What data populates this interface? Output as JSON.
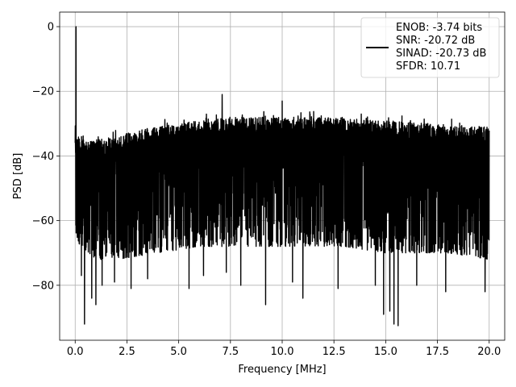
{
  "chart_data": {
    "type": "line",
    "xlabel": "Frequency [MHz]",
    "ylabel": "PSD [dB]",
    "xlim": [
      -0.75,
      20.75
    ],
    "ylim": [
      -97,
      4.5
    ],
    "xticks": [
      0.0,
      2.5,
      5.0,
      7.5,
      10.0,
      12.5,
      15.0,
      17.5,
      20.0
    ],
    "xtick_labels": [
      "0.0",
      "2.5",
      "5.0",
      "7.5",
      "10.0",
      "12.5",
      "15.0",
      "17.5",
      "20.0"
    ],
    "yticks": [
      0,
      -20,
      -40,
      -60,
      -80
    ],
    "ytick_labels": [
      "0",
      "−20",
      "−40",
      "−60",
      "−80"
    ],
    "grid": true,
    "legend_position": "top-right",
    "series": [
      {
        "color": "#000000",
        "x_range": [
          0.0,
          20.0
        ],
        "peak": {
          "x": 0.04,
          "y": 0
        },
        "upper_envelope": [
          {
            "x": 0.0,
            "y": -30
          },
          {
            "x": 0.3,
            "y": -33
          },
          {
            "x": 1.0,
            "y": -33
          },
          {
            "x": 2.0,
            "y": -32
          },
          {
            "x": 3.0,
            "y": -30
          },
          {
            "x": 4.0,
            "y": -29
          },
          {
            "x": 5.0,
            "y": -28
          },
          {
            "x": 6.0,
            "y": -27
          },
          {
            "x": 7.0,
            "y": -26.5
          },
          {
            "x": 8.0,
            "y": -26
          },
          {
            "x": 9.0,
            "y": -26
          },
          {
            "x": 10.0,
            "y": -26
          },
          {
            "x": 11.0,
            "y": -26
          },
          {
            "x": 12.0,
            "y": -26
          },
          {
            "x": 13.0,
            "y": -26.5
          },
          {
            "x": 14.0,
            "y": -27
          },
          {
            "x": 15.0,
            "y": -27
          },
          {
            "x": 16.0,
            "y": -27.5
          },
          {
            "x": 17.0,
            "y": -28
          },
          {
            "x": 18.0,
            "y": -28.5
          },
          {
            "x": 19.0,
            "y": -29
          },
          {
            "x": 20.0,
            "y": -29
          }
        ],
        "lower_envelope": [
          {
            "x": 0.0,
            "y": -66
          },
          {
            "x": 1.0,
            "y": -72
          },
          {
            "x": 2.0,
            "y": -72
          },
          {
            "x": 3.0,
            "y": -71
          },
          {
            "x": 4.0,
            "y": -70
          },
          {
            "x": 5.0,
            "y": -69
          },
          {
            "x": 6.0,
            "y": -68
          },
          {
            "x": 7.0,
            "y": -68
          },
          {
            "x": 8.0,
            "y": -68
          },
          {
            "x": 9.0,
            "y": -68
          },
          {
            "x": 10.0,
            "y": -68
          },
          {
            "x": 11.0,
            "y": -68
          },
          {
            "x": 12.0,
            "y": -68
          },
          {
            "x": 13.0,
            "y": -68
          },
          {
            "x": 14.0,
            "y": -69
          },
          {
            "x": 15.0,
            "y": -70
          },
          {
            "x": 16.0,
            "y": -70
          },
          {
            "x": 17.0,
            "y": -70
          },
          {
            "x": 18.0,
            "y": -70
          },
          {
            "x": 19.0,
            "y": -71
          },
          {
            "x": 20.0,
            "y": -72
          }
        ],
        "spurs_up": [
          {
            "x": 7.1,
            "y": -21
          },
          {
            "x": 10.0,
            "y": -23
          }
        ],
        "spurs_down": [
          {
            "x": 0.3,
            "y": -77
          },
          {
            "x": 0.45,
            "y": -92
          },
          {
            "x": 0.8,
            "y": -84
          },
          {
            "x": 1.0,
            "y": -86
          },
          {
            "x": 1.3,
            "y": -80
          },
          {
            "x": 1.9,
            "y": -79
          },
          {
            "x": 2.7,
            "y": -81
          },
          {
            "x": 3.5,
            "y": -78
          },
          {
            "x": 5.5,
            "y": -81
          },
          {
            "x": 6.2,
            "y": -77
          },
          {
            "x": 7.3,
            "y": -76
          },
          {
            "x": 8.0,
            "y": -80
          },
          {
            "x": 9.2,
            "y": -86
          },
          {
            "x": 10.5,
            "y": -79
          },
          {
            "x": 11.0,
            "y": -84
          },
          {
            "x": 12.7,
            "y": -81
          },
          {
            "x": 14.5,
            "y": -80
          },
          {
            "x": 14.9,
            "y": -89
          },
          {
            "x": 15.2,
            "y": -88
          },
          {
            "x": 15.4,
            "y": -92
          },
          {
            "x": 15.6,
            "y": -92.5
          },
          {
            "x": 16.5,
            "y": -80
          },
          {
            "x": 17.9,
            "y": -82
          },
          {
            "x": 19.8,
            "y": -82
          }
        ]
      }
    ],
    "legend": {
      "entries": [
        "ENOB: -3.74 bits",
        "SNR: -20.72 dB",
        "SINAD: -20.73 dB",
        "SFDR: 10.71"
      ]
    }
  }
}
